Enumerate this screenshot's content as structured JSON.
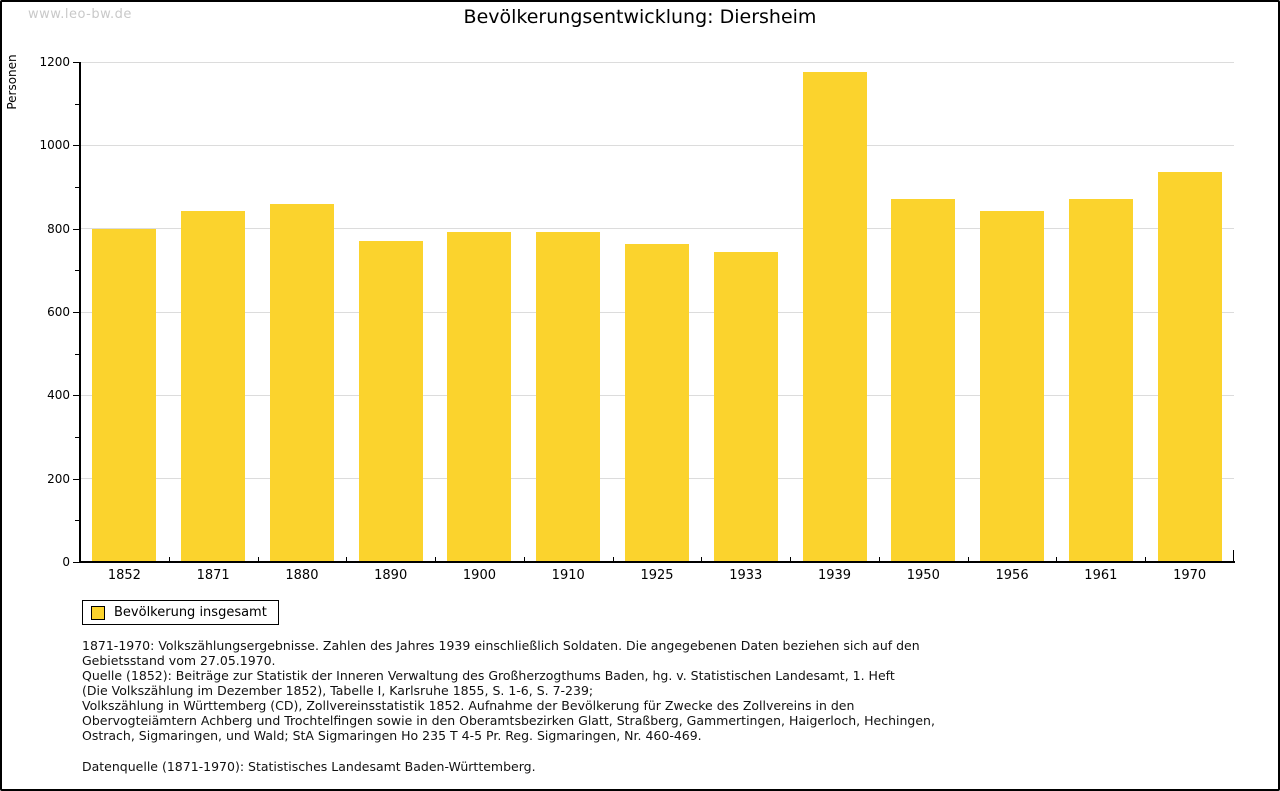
{
  "watermark": "www.leo-bw.de",
  "title": "Bevölkerungsentwicklung: Diersheim",
  "chart_data": {
    "type": "bar",
    "title": "Bevölkerungsentwicklung: Diersheim",
    "xlabel": "",
    "ylabel": "Personen",
    "categories": [
      "1852",
      "1871",
      "1880",
      "1890",
      "1900",
      "1910",
      "1925",
      "1933",
      "1939",
      "1950",
      "1956",
      "1961",
      "1970"
    ],
    "values": [
      800,
      843,
      860,
      770,
      793,
      793,
      763,
      743,
      1176,
      872,
      843,
      872,
      935
    ],
    "ylim": [
      0,
      1200
    ],
    "ytick_step": 200,
    "y_minor_step": 100,
    "grid": true,
    "legend_position": "bottom-left",
    "bar_color": "#fbd32d",
    "series_name": "Bevölkerung insgesamt"
  },
  "legend": {
    "label": "Bevölkerung insgesamt",
    "swatch_color": "#fbd32d"
  },
  "footer": {
    "lines": [
      "1871-1970: Volkszählungsergebnisse. Zahlen des Jahres 1939 einschließlich Soldaten. Die angegebenen Daten beziehen sich auf den",
      "Gebietsstand vom 27.05.1970.",
      "Quelle (1852): Beiträge zur Statistik der Inneren Verwaltung des Großherzogthums Baden, hg. v. Statistischen Landesamt, 1. Heft",
      "(Die Volkszählung im Dezember 1852), Tabelle I, Karlsruhe 1855, S. 1-6, S. 7-239;",
      "Volkszählung in Württemberg (CD), Zollvereinsstatistik 1852. Aufnahme der Bevölkerung für Zwecke des Zollvereins in den",
      "Obervogteiämtern Achberg und Trochtelfingen sowie in den Oberamtsbezirken Glatt, Straßberg, Gammertingen, Haigerloch, Hechingen,",
      "Ostrach, Sigmaringen, und Wald; StA Sigmaringen Ho 235 T 4-5 Pr. Reg. Sigmaringen, Nr. 460-469."
    ],
    "datasource": "Datenquelle (1871-1970): Statistisches Landesamt Baden-Württemberg."
  },
  "colors": {
    "bar": "#fbd32d",
    "gridline": "#dcdcdc",
    "watermark": "#c9c9c9",
    "axis": "#000000",
    "background": "#ffffff"
  }
}
